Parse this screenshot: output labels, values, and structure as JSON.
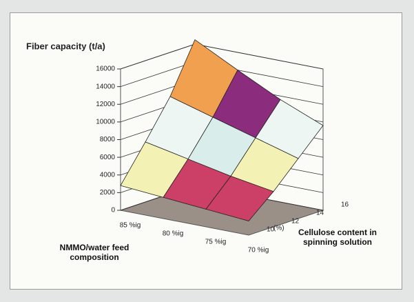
{
  "chart_data": {
    "type": "surface3d",
    "title": "Fiber capacity (t/a)",
    "x_label": "NMMO/water feed composition",
    "depth_label": "Cellulose content in spinning solution",
    "categories": [
      "85 %ig",
      "80 %ig",
      "75 %ig",
      "70 %ig"
    ],
    "depth_unit": "(%)",
    "depth": [
      10,
      12,
      14,
      16
    ],
    "zlim": [
      0,
      16000
    ],
    "zticks": [
      0,
      2000,
      4000,
      6000,
      8000,
      10000,
      12000,
      14000,
      16000
    ],
    "values": [
      [
        2800,
        2400,
        2000,
        1600
      ],
      [
        6800,
        5800,
        4800,
        4000
      ],
      [
        11000,
        9600,
        8200,
        6800
      ],
      [
        16500,
        14000,
        11600,
        9600
      ]
    ],
    "band_colors": [
      "#a8aee8",
      "#cc3f66",
      "#f3f2b4",
      "#d9eeea",
      "#eef6f4",
      "#8b2c7c",
      "#f0a04e",
      "#5566cc",
      "#c9c9ea"
    ],
    "grid": true
  }
}
